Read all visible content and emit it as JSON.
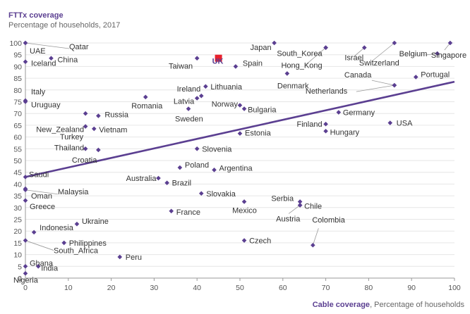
{
  "chart_data": {
    "type": "scatter",
    "title": "FTTx coverage",
    "subtitle": "Percentage of households, 2017",
    "xlabel_main": "Cable coverage",
    "xlabel_sub": ", Percentage of households",
    "xlim": [
      0,
      100
    ],
    "ylim": [
      0,
      100
    ],
    "x_ticks": [
      0,
      10,
      20,
      30,
      40,
      50,
      60,
      70,
      80,
      90,
      100
    ],
    "y_ticks": [
      0,
      5,
      10,
      15,
      20,
      25,
      30,
      35,
      40,
      45,
      50,
      55,
      60,
      65,
      70,
      75,
      80,
      85,
      90,
      95,
      100
    ],
    "point_color": "#5b3f91",
    "highlight_color": "#e8212e",
    "trendline": {
      "x": [
        0,
        100
      ],
      "y": [
        43,
        83.5
      ],
      "color": "#5b3f91"
    },
    "points": [
      {
        "name": "Qatar",
        "x": 0,
        "y": 100
      },
      {
        "name": "UAE",
        "x": 0,
        "y": 100
      },
      {
        "name": "Iceland",
        "x": 0,
        "y": 92
      },
      {
        "name": "China",
        "x": 6,
        "y": 93.5
      },
      {
        "name": "Italy",
        "x": 0,
        "y": 75.5
      },
      {
        "name": "Uruguay",
        "x": 0,
        "y": 75
      },
      {
        "name": "New_Zealand",
        "x": 14,
        "y": 64.5
      },
      {
        "name": "Russia",
        "x": 17,
        "y": 69
      },
      {
        "name": "Vietnam",
        "x": 16,
        "y": 63.5
      },
      {
        "name": "Turkey",
        "x": 14,
        "y": 70
      },
      {
        "name": "Thailand",
        "x": 14,
        "y": 55
      },
      {
        "name": "Croatia",
        "x": 17,
        "y": 54.5
      },
      {
        "name": "Saudi",
        "x": 0,
        "y": 43
      },
      {
        "name": "Oman",
        "x": 0,
        "y": 38
      },
      {
        "name": "Malaysia",
        "x": 0,
        "y": 37.5
      },
      {
        "name": "Greece",
        "x": 0,
        "y": 33
      },
      {
        "name": "Indonesia",
        "x": 2,
        "y": 19.5
      },
      {
        "name": "Ukraine",
        "x": 12,
        "y": 23
      },
      {
        "name": "Philippines",
        "x": 9,
        "y": 15
      },
      {
        "name": "South_Africa",
        "x": 0,
        "y": 16
      },
      {
        "name": "Ghana",
        "x": 0,
        "y": 5
      },
      {
        "name": "India",
        "x": 3,
        "y": 5
      },
      {
        "name": "Nigeria",
        "x": 0,
        "y": 2
      },
      {
        "name": "Peru",
        "x": 22,
        "y": 9
      },
      {
        "name": "Romania",
        "x": 28,
        "y": 77
      },
      {
        "name": "Australia",
        "x": 31,
        "y": 42.5
      },
      {
        "name": "Brazil",
        "x": 33,
        "y": 40.5
      },
      {
        "name": "France",
        "x": 34,
        "y": 28.5
      },
      {
        "name": "Taiwan",
        "x": 40,
        "y": 93.5
      },
      {
        "name": "UK",
        "x": 45,
        "y": 93.5,
        "highlight": true
      },
      {
        "name": "Spain",
        "x": 49,
        "y": 90
      },
      {
        "name": "Ireland",
        "x": 41,
        "y": 77.5
      },
      {
        "name": "Latvia",
        "x": 40,
        "y": 76.5
      },
      {
        "name": "Lithuania",
        "x": 42,
        "y": 81.5
      },
      {
        "name": "Sweden",
        "x": 38,
        "y": 72
      },
      {
        "name": "Norway",
        "x": 50,
        "y": 73.5
      },
      {
        "name": "Bulgaria",
        "x": 51,
        "y": 72
      },
      {
        "name": "Estonia",
        "x": 50,
        "y": 61.5
      },
      {
        "name": "Slovenia",
        "x": 40,
        "y": 55
      },
      {
        "name": "Poland",
        "x": 36,
        "y": 47
      },
      {
        "name": "Argentina",
        "x": 44,
        "y": 46
      },
      {
        "name": "Slovakia",
        "x": 41,
        "y": 36
      },
      {
        "name": "Mexico",
        "x": 51,
        "y": 32.5
      },
      {
        "name": "Czech",
        "x": 51,
        "y": 16
      },
      {
        "name": "Japan",
        "x": 58,
        "y": 100
      },
      {
        "name": "Denmark",
        "x": 61,
        "y": 87
      },
      {
        "name": "South_Korea",
        "x": 70,
        "y": 98
      },
      {
        "name": "Hong_Kong",
        "x": 70,
        "y": 98
      },
      {
        "name": "Israel",
        "x": 79,
        "y": 98
      },
      {
        "name": "Switzerland",
        "x": 86,
        "y": 100
      },
      {
        "name": "Belgium",
        "x": 96,
        "y": 95.5
      },
      {
        "name": "Singapore",
        "x": 99,
        "y": 100
      },
      {
        "name": "Canada",
        "x": 86,
        "y": 82
      },
      {
        "name": "Netherlands",
        "x": 86,
        "y": 82
      },
      {
        "name": "Portugal",
        "x": 91,
        "y": 85.5
      },
      {
        "name": "Germany",
        "x": 73,
        "y": 70.5
      },
      {
        "name": "Finland",
        "x": 70,
        "y": 65.5
      },
      {
        "name": "Hungary",
        "x": 70,
        "y": 62.5
      },
      {
        "name": "USA",
        "x": 85,
        "y": 66
      },
      {
        "name": "Serbia",
        "x": 64,
        "y": 32.5
      },
      {
        "name": "Chile",
        "x": 64,
        "y": 31
      },
      {
        "name": "Austria",
        "x": 64,
        "y": 31
      },
      {
        "name": "Colombia",
        "x": 67,
        "y": 14
      }
    ]
  }
}
